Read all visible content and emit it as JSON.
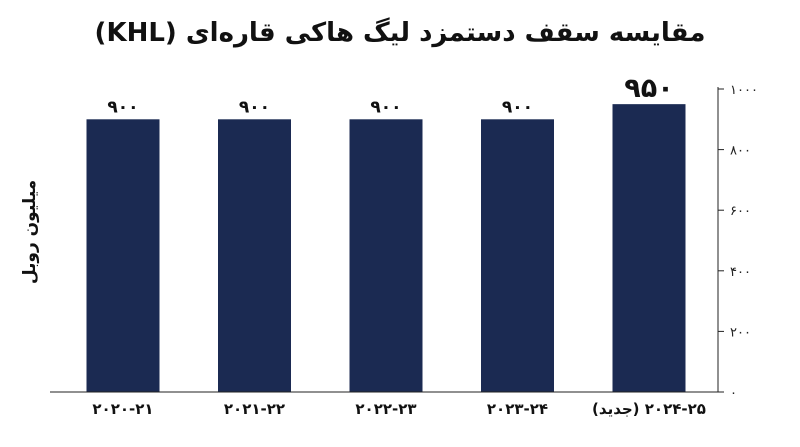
{
  "chart_data": {
    "type": "bar",
    "title": "مقایسه سقف دستمزد لیگ هاکی قاره‌ای (KHL)",
    "ylabel": "میلیون روبل",
    "categories": [
      "۲۰۲۰-۲۱",
      "۲۰۲۱-۲۲",
      "۲۰۲۲-۲۳",
      "۲۰۲۳-۲۴",
      "۲۰۲۴-۲۵ (جدید)"
    ],
    "values": [
      900,
      900,
      900,
      900,
      950
    ],
    "value_labels": [
      "۹۰۰",
      "۹۰۰",
      "۹۰۰",
      "۹۰۰",
      "۹۵۰"
    ],
    "ylim": [
      0,
      1000
    ],
    "yticks": [
      0,
      200,
      400,
      600,
      800,
      1000
    ],
    "ytick_labels": [
      "۰",
      "۲۰۰",
      "۴۰۰",
      "۶۰۰",
      "۸۰۰",
      "۱۰۰۰"
    ],
    "y_axis_position": "right",
    "grid": false,
    "colors": {
      "bar": "#1b2a52",
      "highlight_label": "#8a7a45",
      "axis": "#222222"
    }
  }
}
